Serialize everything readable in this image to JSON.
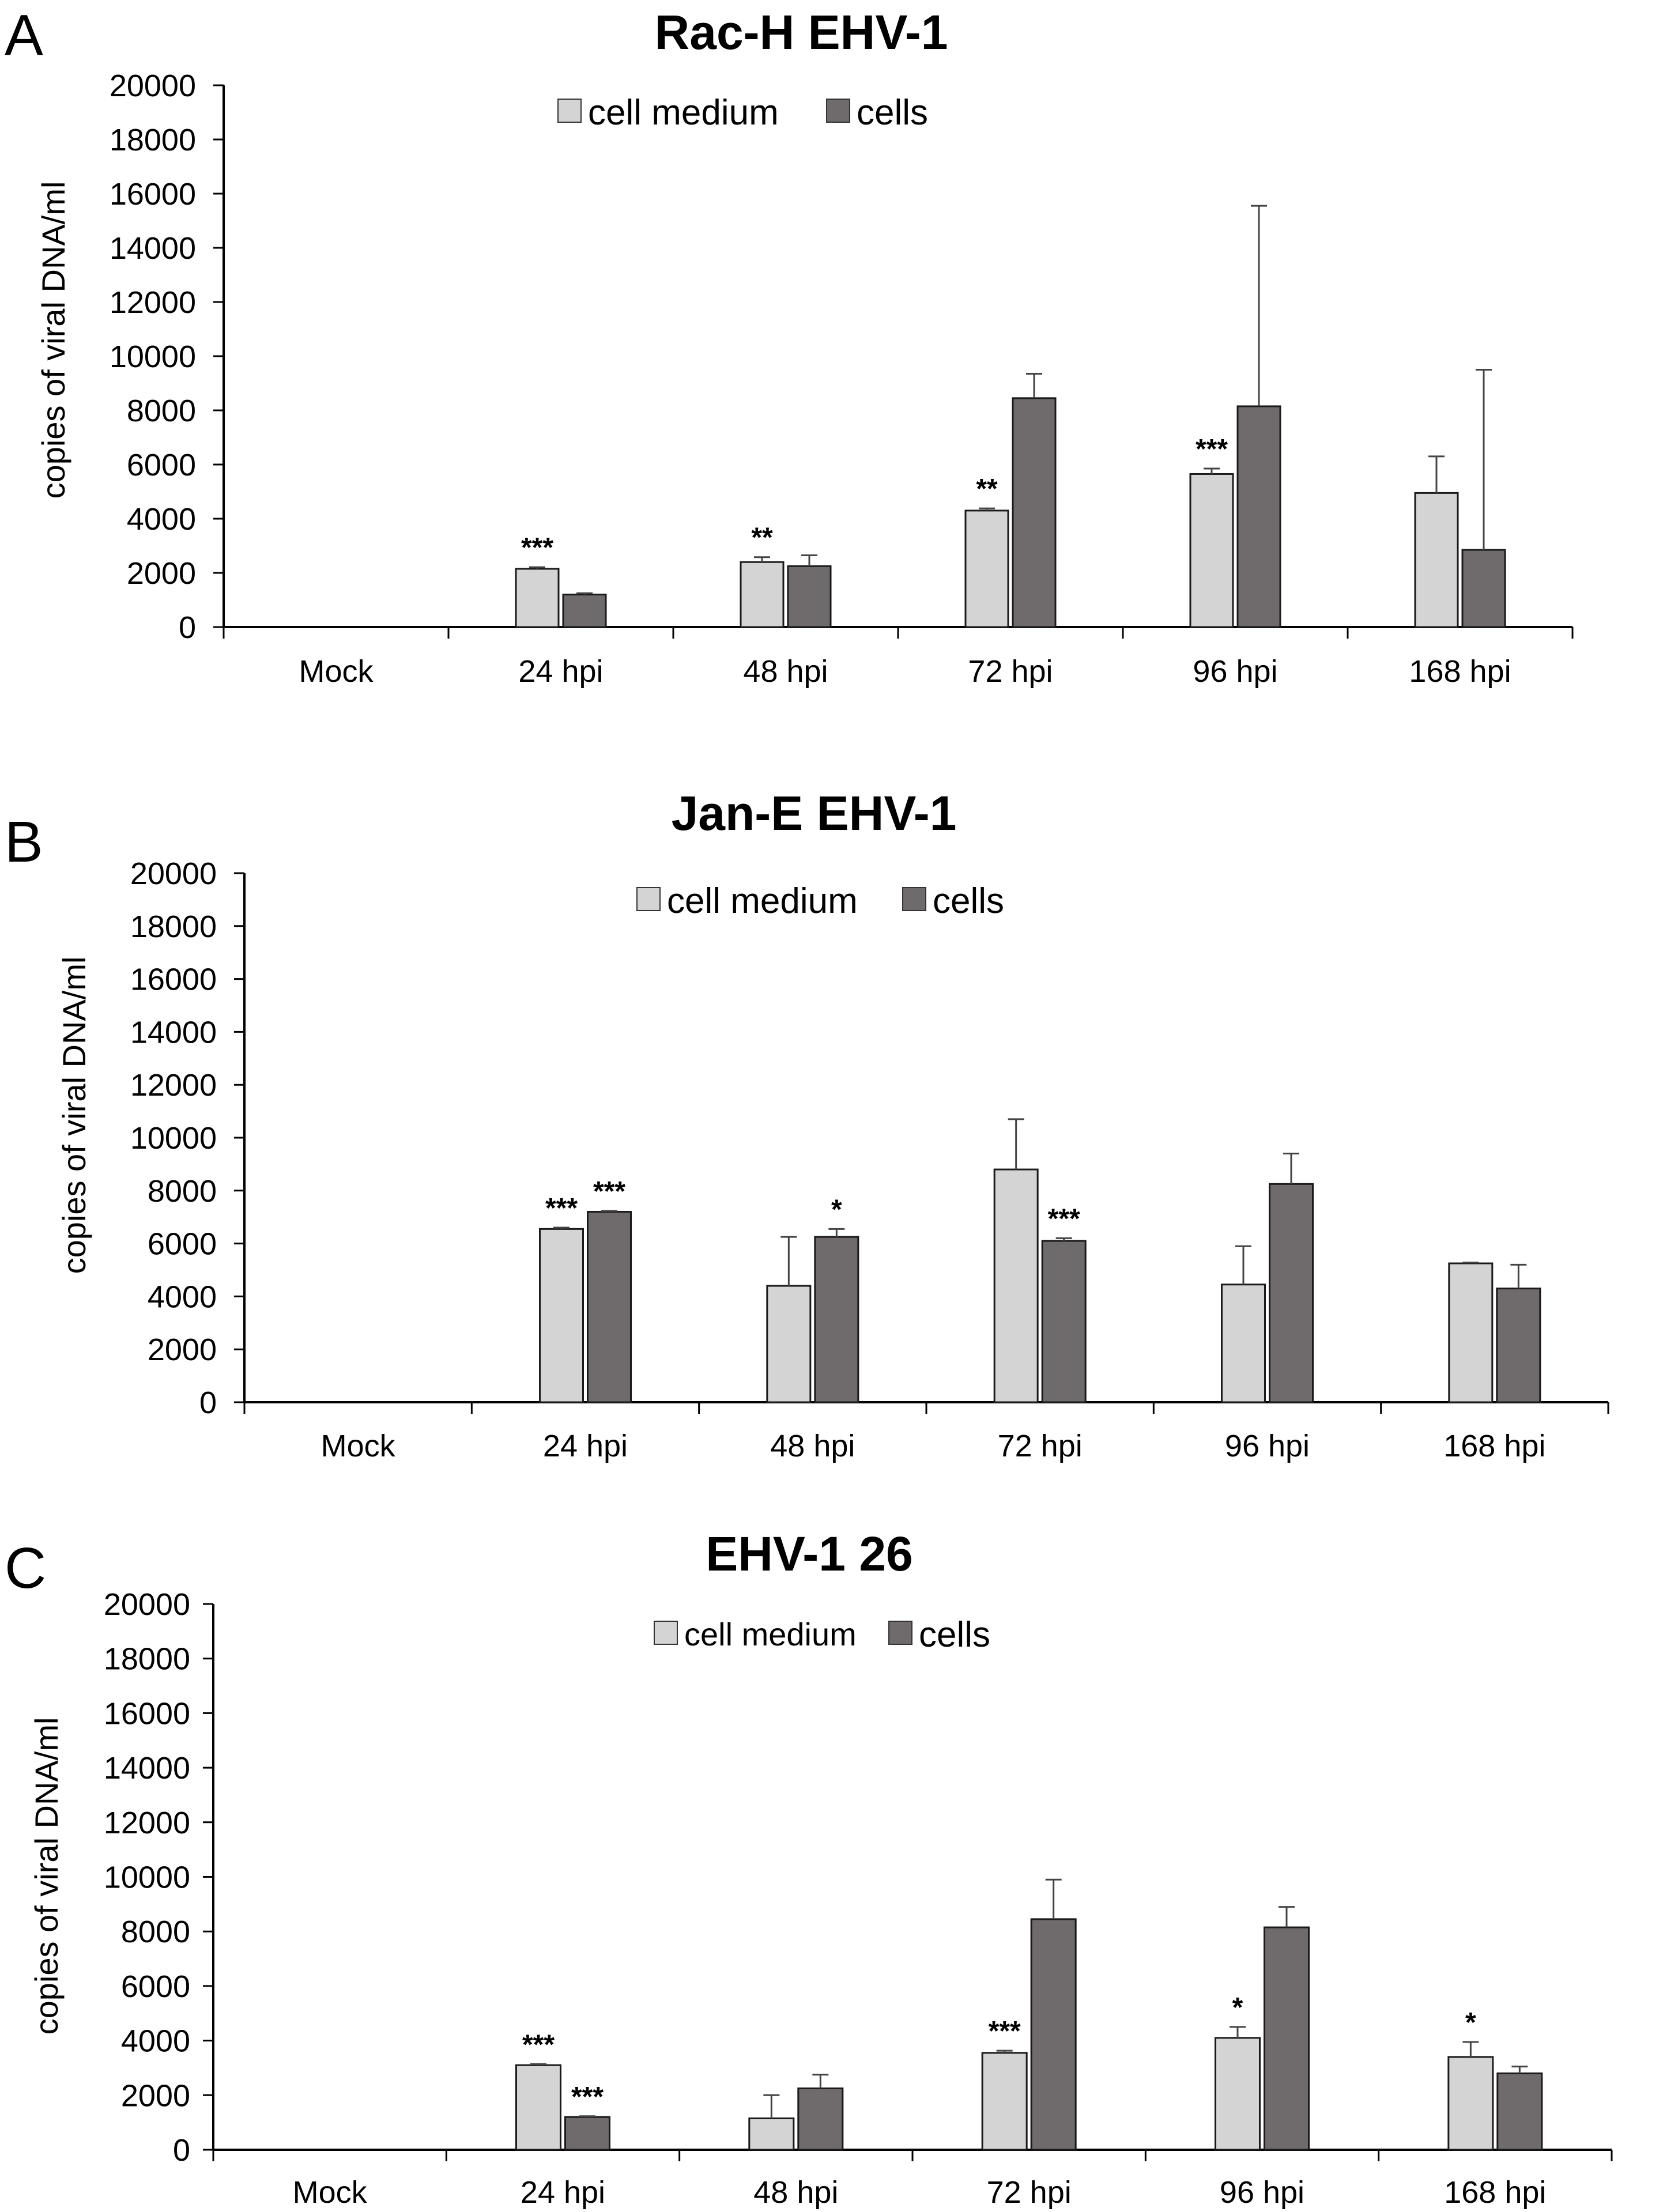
{
  "figure": {
    "colors": {
      "cell_medium": "#d4d4d4",
      "cells": "#6f6a6b",
      "axis": "#000000",
      "error_bar": "#444444"
    }
  },
  "chart_data": [
    {
      "panel": "A",
      "type": "bar",
      "title": "Rac-H EHV-1",
      "ylabel": "copies of viral DNA/ml",
      "xlabel": "",
      "ylim": [
        0,
        20000
      ],
      "yticks": [
        0,
        2000,
        4000,
        6000,
        8000,
        10000,
        12000,
        14000,
        16000,
        18000,
        20000
      ],
      "grid": false,
      "legend": "top-center",
      "categories": [
        "Mock",
        "24 hpi",
        "48 hpi",
        "72 hpi",
        "96 hpi",
        "168 hpi"
      ],
      "series": [
        {
          "name": "cell medium",
          "values": [
            0,
            2150,
            2400,
            4300,
            5650,
            4950
          ],
          "errors": [
            0,
            60,
            180,
            80,
            200,
            1350
          ],
          "significance": [
            "",
            "***",
            "**",
            "**",
            "***",
            ""
          ]
        },
        {
          "name": "cells",
          "values": [
            0,
            1200,
            2250,
            8450,
            8150,
            2850
          ],
          "errors": [
            0,
            50,
            400,
            900,
            7400,
            6650
          ],
          "significance": [
            "",
            "",
            "",
            "",
            "",
            ""
          ]
        }
      ]
    },
    {
      "panel": "B",
      "type": "bar",
      "title": "Jan-E EHV-1",
      "ylabel": "copies of viral DNA/ml",
      "xlabel": "",
      "ylim": [
        0,
        20000
      ],
      "yticks": [
        0,
        2000,
        4000,
        6000,
        8000,
        10000,
        12000,
        14000,
        16000,
        18000,
        20000
      ],
      "grid": false,
      "legend": "top-center",
      "categories": [
        "Mock",
        "24 hpi",
        "48 hpi",
        "72 hpi",
        "96 hpi",
        "168 hpi"
      ],
      "series": [
        {
          "name": "cell medium",
          "values": [
            0,
            6550,
            4400,
            8800,
            4450,
            5250
          ],
          "errors": [
            0,
            50,
            1850,
            1900,
            1450,
            30
          ],
          "significance": [
            "",
            "***",
            "",
            "",
            "",
            ""
          ]
        },
        {
          "name": "cells",
          "values": [
            0,
            7200,
            6250,
            6100,
            8250,
            4300
          ],
          "errors": [
            0,
            30,
            300,
            100,
            1150,
            900
          ],
          "significance": [
            "",
            "***",
            "*",
            "***",
            "",
            ""
          ]
        }
      ]
    },
    {
      "panel": "C",
      "type": "bar",
      "title": "EHV-1 26",
      "ylabel": "copies of viral DNA/ml",
      "xlabel": "",
      "ylim": [
        0,
        20000
      ],
      "yticks": [
        0,
        2000,
        4000,
        6000,
        8000,
        10000,
        12000,
        14000,
        16000,
        18000,
        20000
      ],
      "grid": false,
      "legend": "top-center",
      "categories": [
        "Mock",
        "24 hpi",
        "48 hpi",
        "72 hpi",
        "96 hpi",
        "168 hpi"
      ],
      "series": [
        {
          "name": "cell medium",
          "values": [
            0,
            3100,
            1150,
            3550,
            4100,
            3400
          ],
          "errors": [
            0,
            40,
            850,
            80,
            400,
            550
          ],
          "significance": [
            "",
            "***",
            "",
            "***",
            "*",
            "*"
          ]
        },
        {
          "name": "cells",
          "values": [
            0,
            1200,
            2250,
            8450,
            8150,
            2800
          ],
          "errors": [
            0,
            30,
            500,
            1450,
            750,
            250
          ],
          "significance": [
            "",
            "***",
            "",
            "",
            "",
            ""
          ]
        }
      ]
    }
  ]
}
